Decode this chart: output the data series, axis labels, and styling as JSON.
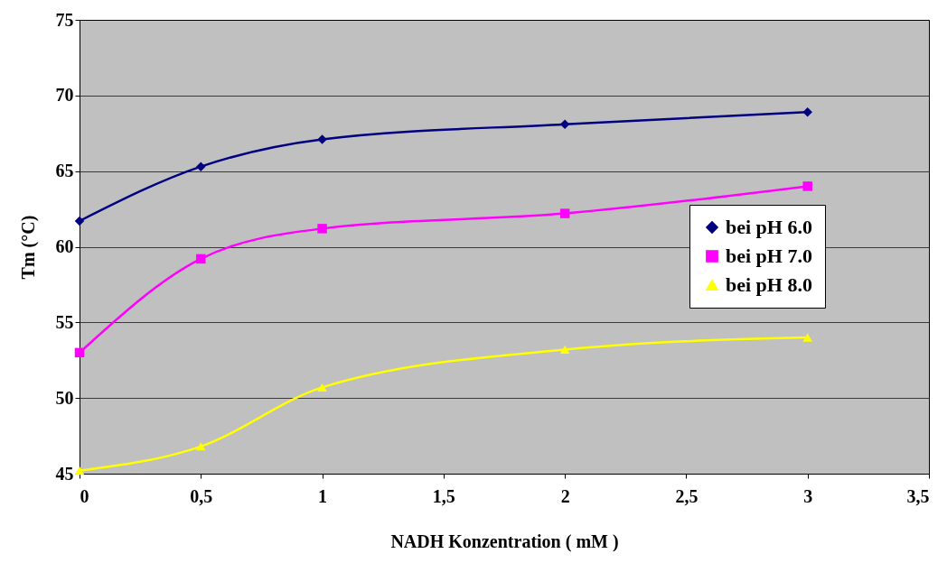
{
  "chart_data": {
    "type": "line",
    "xlabel": "NADH Konzentration ( mM )",
    "ylabel": "Tm (°C)",
    "x": [
      0,
      0.5,
      1,
      2,
      3
    ],
    "series": [
      {
        "name": "bei pH 6.0",
        "color": "#000080",
        "marker": "diamond",
        "values": [
          61.7,
          65.3,
          67.1,
          68.1,
          68.9
        ]
      },
      {
        "name": "bei pH 7.0",
        "color": "#ff00ff",
        "marker": "square",
        "values": [
          53.0,
          59.2,
          61.2,
          62.2,
          64.0
        ]
      },
      {
        "name": "bei pH 8.0",
        "color": "#ffff00",
        "marker": "triangle",
        "values": [
          45.2,
          46.8,
          50.7,
          53.2,
          54.0
        ]
      }
    ],
    "xlim": [
      0,
      3.5
    ],
    "xticks": [
      0,
      {
        "value": 0.5,
        "label": "0,5"
      },
      1,
      {
        "value": 1.5,
        "label": "1,5"
      },
      2,
      {
        "value": 2.5,
        "label": "2,5"
      },
      3,
      {
        "value": 3.5,
        "label": "3,5"
      }
    ],
    "ylim": [
      45,
      75
    ],
    "yticks": [
      45,
      50,
      55,
      60,
      65,
      70,
      75
    ],
    "grid": "y",
    "legend": "right"
  }
}
